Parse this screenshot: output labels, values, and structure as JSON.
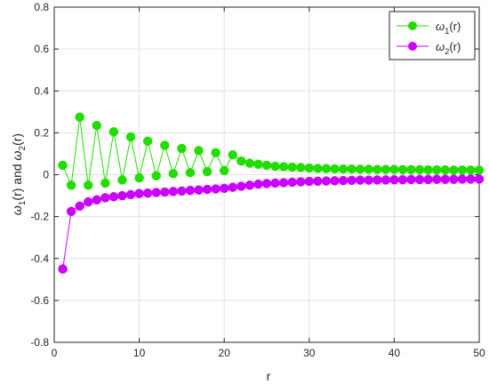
{
  "chart_data": {
    "type": "line",
    "xlabel": "r",
    "ylabel": "ω1(r) and ω2(r)",
    "xlim": [
      0,
      50
    ],
    "ylim": [
      -0.8,
      0.8
    ],
    "xticks": [
      0,
      10,
      20,
      30,
      40,
      50
    ],
    "yticks": [
      -0.8,
      -0.6,
      -0.4,
      -0.2,
      0,
      0.2,
      0.4,
      0.6,
      0.8
    ],
    "grid": true,
    "legend_position": "top-right",
    "series": [
      {
        "name": "ω1(r)",
        "color": "#22dd00",
        "x": [
          1,
          2,
          3,
          4,
          5,
          6,
          7,
          8,
          9,
          10,
          11,
          12,
          13,
          14,
          15,
          16,
          17,
          18,
          19,
          20,
          21,
          22,
          23,
          24,
          25,
          26,
          27,
          28,
          29,
          30,
          31,
          32,
          33,
          34,
          35,
          36,
          37,
          38,
          39,
          40,
          41,
          42,
          43,
          44,
          45,
          46,
          47,
          48,
          49,
          50
        ],
        "y": [
          0.045,
          -0.05,
          0.275,
          -0.05,
          0.235,
          -0.04,
          0.205,
          -0.025,
          0.18,
          -0.015,
          0.16,
          -0.005,
          0.14,
          0.005,
          0.125,
          0.01,
          0.115,
          0.015,
          0.105,
          0.02,
          0.095,
          0.065,
          0.055,
          0.05,
          0.045,
          0.04,
          0.038,
          0.036,
          0.034,
          0.032,
          0.03,
          0.029,
          0.028,
          0.027,
          0.027,
          0.026,
          0.026,
          0.025,
          0.025,
          0.025,
          0.024,
          0.024,
          0.024,
          0.023,
          0.023,
          0.023,
          0.022,
          0.022,
          0.022,
          0.022
        ]
      },
      {
        "name": "ω2(r)",
        "color": "#cc00ff",
        "x": [
          1,
          2,
          3,
          4,
          5,
          6,
          7,
          8,
          9,
          10,
          11,
          12,
          13,
          14,
          15,
          16,
          17,
          18,
          19,
          20,
          21,
          22,
          23,
          24,
          25,
          26,
          27,
          28,
          29,
          30,
          31,
          32,
          33,
          34,
          35,
          36,
          37,
          38,
          39,
          40,
          41,
          42,
          43,
          44,
          45,
          46,
          47,
          48,
          49,
          50
        ],
        "y": [
          -0.45,
          -0.175,
          -0.15,
          -0.13,
          -0.12,
          -0.11,
          -0.105,
          -0.1,
          -0.095,
          -0.09,
          -0.088,
          -0.085,
          -0.083,
          -0.08,
          -0.078,
          -0.075,
          -0.073,
          -0.07,
          -0.068,
          -0.065,
          -0.06,
          -0.055,
          -0.05,
          -0.045,
          -0.042,
          -0.04,
          -0.038,
          -0.036,
          -0.034,
          -0.032,
          -0.031,
          -0.03,
          -0.029,
          -0.028,
          -0.027,
          -0.026,
          -0.026,
          -0.025,
          -0.025,
          -0.024,
          -0.024,
          -0.023,
          -0.023,
          -0.023,
          -0.022,
          -0.022,
          -0.022,
          -0.021,
          -0.021,
          -0.021
        ]
      }
    ]
  }
}
